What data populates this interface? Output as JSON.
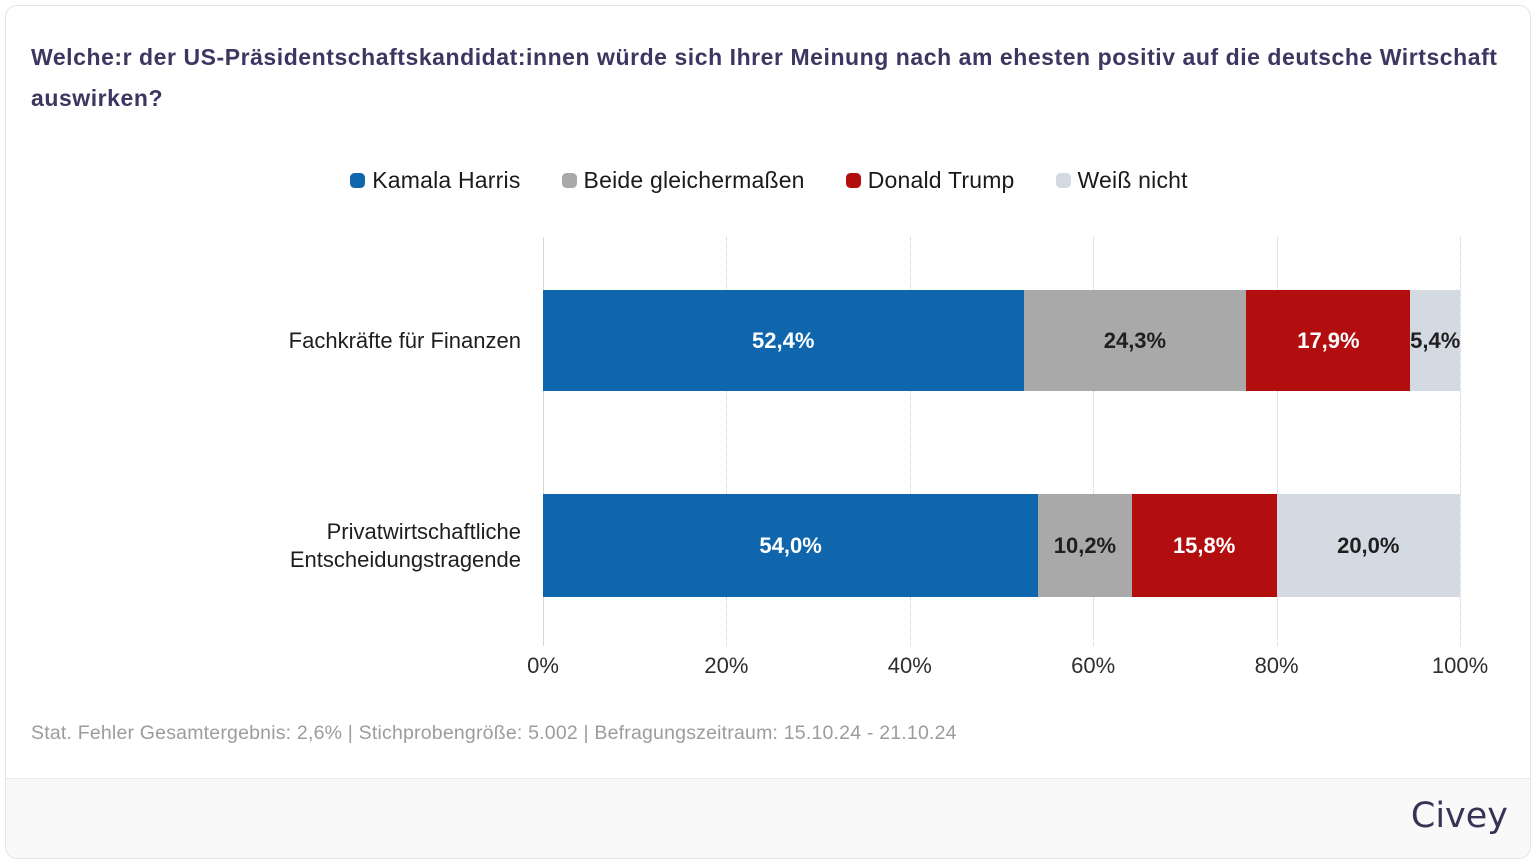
{
  "title": "Welche:r der US-Präsidentschaftskandidat:innen würde sich Ihrer Meinung nach am ehesten positiv auf die deutsche Wirtschaft auswirken?",
  "legend": [
    {
      "label": "Kamala Harris"
    },
    {
      "label": "Beide gleichermaßen"
    },
    {
      "label": "Donald Trump"
    },
    {
      "label": "Weiß nicht"
    }
  ],
  "chart_data": {
    "type": "bar",
    "orientation": "horizontal",
    "stacked": true,
    "categories": [
      "Fachkräfte für Finanzen",
      "Privatwirtschaftliche Entscheidungstragende"
    ],
    "series": [
      {
        "name": "Kamala Harris",
        "color": "#1066AD",
        "label_color": "#ffffff",
        "values": [
          52.4,
          54.0
        ]
      },
      {
        "name": "Beide gleichermaßen",
        "color": "#A9A9A9",
        "label_color": "#1f1f1f",
        "values": [
          24.3,
          10.2
        ]
      },
      {
        "name": "Donald Trump",
        "color": "#B20E10",
        "label_color": "#ffffff",
        "values": [
          17.9,
          15.8
        ]
      },
      {
        "name": "Weiß nicht",
        "color": "#D3DAE1",
        "label_color": "#1f1f1f",
        "values": [
          5.4,
          20.0
        ]
      }
    ],
    "value_labels": [
      [
        "52,4%",
        "24,3%",
        "17,9%",
        "5,4%"
      ],
      [
        "54,0%",
        "10,2%",
        "15,8%",
        "20,0%"
      ]
    ],
    "x_ticks": [
      "0%",
      "20%",
      "40%",
      "60%",
      "80%",
      "100%"
    ],
    "xlim": [
      0,
      100
    ],
    "xlabel": "",
    "ylabel": ""
  },
  "footer": {
    "text": "Stat. Fehler Gesamtergebnis: 2,6% | Stichprobengröße: 5.002 | Befragungszeitraum: 15.10.24 - 21.10.24"
  },
  "brand": {
    "logo": "Civey"
  }
}
